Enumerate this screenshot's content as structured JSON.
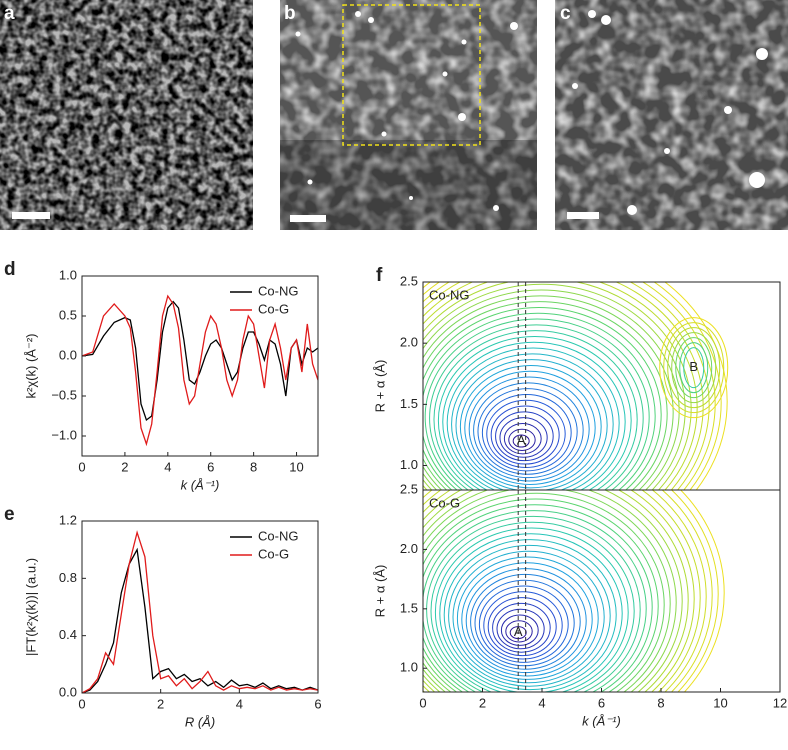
{
  "images": [
    {
      "panel": "a"
    },
    {
      "panel": "b"
    },
    {
      "panel": "c"
    }
  ],
  "chart_data": [
    {
      "type": "line",
      "panel": "d",
      "xlabel": "k (Å⁻¹)",
      "ylabel": "k²χ(k) (Å⁻²)",
      "legend": "upper right",
      "xlim": [
        0,
        11
      ],
      "xticks": [
        0,
        2,
        4,
        6,
        8,
        10
      ],
      "ylim": [
        -1.25,
        1.0
      ],
      "yticks": [
        {
          "value": -1,
          "label": "−1.0"
        },
        {
          "value": -0.5,
          "label": "−0.5"
        },
        {
          "value": 0,
          "label": "0.0"
        },
        0.5,
        {
          "value": 1,
          "label": "1.0"
        }
      ],
      "x": [
        0,
        0.5,
        1,
        1.5,
        2,
        2.25,
        2.5,
        2.75,
        3,
        3.25,
        3.5,
        3.75,
        4,
        4.25,
        4.5,
        4.75,
        5,
        5.25,
        5.5,
        5.75,
        6,
        6.25,
        6.5,
        6.75,
        7,
        7.25,
        7.5,
        7.75,
        8,
        8.25,
        8.5,
        8.75,
        9,
        9.25,
        9.5,
        9.75,
        10,
        10.25,
        10.5,
        10.75,
        11
      ],
      "series": [
        {
          "name": "Co-NG",
          "color": "#000000",
          "values": [
            0,
            0.02,
            0.25,
            0.42,
            0.48,
            0.45,
            0.1,
            -0.6,
            -0.8,
            -0.75,
            -0.3,
            0.3,
            0.6,
            0.68,
            0.6,
            0.2,
            -0.3,
            -0.35,
            -0.2,
            0.0,
            0.15,
            0.2,
            0.1,
            -0.1,
            -0.3,
            -0.2,
            0.1,
            0.3,
            0.3,
            0.15,
            -0.05,
            0.2,
            0.15,
            -0.1,
            -0.5,
            0.1,
            0.2,
            -0.1,
            0.1,
            0.05,
            0.1
          ]
        },
        {
          "name": "Co-G",
          "color": "#e01b1b",
          "values": [
            0,
            0.05,
            0.5,
            0.65,
            0.5,
            0.35,
            -0.2,
            -0.9,
            -1.1,
            -0.85,
            -0.2,
            0.5,
            0.75,
            0.65,
            0.35,
            -0.3,
            -0.6,
            -0.5,
            -0.1,
            0.3,
            0.5,
            0.4,
            0.1,
            -0.3,
            -0.5,
            -0.3,
            0.2,
            0.5,
            0.4,
            0.0,
            -0.4,
            0.2,
            0.4,
            0.1,
            -0.3,
            0.1,
            0.2,
            -0.2,
            0.4,
            -0.1,
            -0.3
          ]
        }
      ]
    },
    {
      "type": "line",
      "panel": "e",
      "xlabel": "R (Å)",
      "ylabel": "|FT(k²χ(k))| (a.u.)",
      "legend": "upper right",
      "xlim": [
        0,
        6
      ],
      "xticks": [
        0,
        2,
        4,
        6
      ],
      "ylim": [
        0,
        1.2
      ],
      "yticks": [
        {
          "value": 0,
          "label": "0.0"
        },
        0.4,
        0.8,
        1.2
      ],
      "x": [
        0,
        0.2,
        0.4,
        0.6,
        0.8,
        1.0,
        1.2,
        1.4,
        1.6,
        1.8,
        2.0,
        2.2,
        2.4,
        2.6,
        2.8,
        3.0,
        3.2,
        3.4,
        3.6,
        3.8,
        4.0,
        4.2,
        4.4,
        4.6,
        4.8,
        5.0,
        5.2,
        5.4,
        5.6,
        5.8,
        6.0
      ],
      "series": [
        {
          "name": "Co-NG",
          "color": "#000000",
          "values": [
            0,
            0.02,
            0.08,
            0.2,
            0.35,
            0.7,
            0.9,
            1.0,
            0.6,
            0.1,
            0.15,
            0.17,
            0.1,
            0.13,
            0.08,
            0.1,
            0.05,
            0.08,
            0.04,
            0.09,
            0.05,
            0.06,
            0.04,
            0.07,
            0.03,
            0.05,
            0.03,
            0.04,
            0.02,
            0.04,
            0.02
          ]
        },
        {
          "name": "Co-G",
          "color": "#e01b1b",
          "values": [
            0,
            0.03,
            0.1,
            0.28,
            0.2,
            0.55,
            0.9,
            1.12,
            0.95,
            0.4,
            0.1,
            0.12,
            0.05,
            0.1,
            0.03,
            0.08,
            0.15,
            0.05,
            0.02,
            0.05,
            0.03,
            0.04,
            0.03,
            0.05,
            0.02,
            0.04,
            0.02,
            0.03,
            0.02,
            0.03,
            0.02
          ]
        }
      ]
    },
    {
      "type": "contour",
      "panel": "f",
      "annotation": "Co-NG",
      "ylabel": "R + α (Å)",
      "xlim": [
        0,
        12
      ],
      "ylim": [
        0.8,
        2.5
      ],
      "yticks": [
        {
          "value": 1,
          "label": "1.0"
        },
        1.5,
        {
          "value": 2,
          "label": "2.0"
        },
        2.5
      ],
      "vlines": [
        3.2,
        3.45
      ],
      "colors": [
        "#2a1496",
        "#2452d8",
        "#1fa0e0",
        "#26c8b4",
        "#5ad46e",
        "#b8dc30",
        "#ece020"
      ],
      "peaks": [
        {
          "x": 3.3,
          "y": 1.2,
          "label": "A"
        },
        {
          "x": 9.1,
          "y": 1.8,
          "label": "B"
        }
      ]
    },
    {
      "type": "contour",
      "annotation": "Co-G",
      "ylabel": "R + α (Å)",
      "xlabel": "k (Å⁻¹)",
      "xlim": [
        0,
        12
      ],
      "xticks": [
        0,
        2,
        4,
        6,
        8,
        10,
        12
      ],
      "ylim": [
        0.8,
        2.5
      ],
      "yticks": [
        {
          "value": 1,
          "label": "1.0"
        },
        1.5,
        {
          "value": 2,
          "label": "2.0"
        },
        2.5
      ],
      "vlines": [
        3.2,
        3.45
      ],
      "colors": [
        "#2a1496",
        "#2452d8",
        "#1fa0e0",
        "#26c8b4",
        "#5ad46e",
        "#b8dc30",
        "#ece020"
      ],
      "peaks": [
        {
          "x": 3.2,
          "y": 1.3,
          "label": "A"
        }
      ]
    }
  ]
}
